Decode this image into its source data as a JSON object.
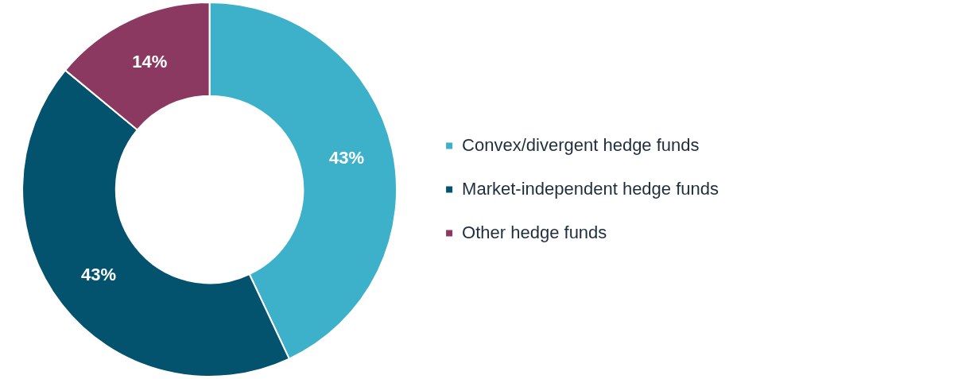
{
  "chart_data": {
    "type": "donut",
    "categories": [
      "Convex/divergent hedge funds",
      "Market-independent hedge funds",
      "Other hedge funds"
    ],
    "values": [
      43,
      43,
      14
    ],
    "colors": [
      "#3cb1c9",
      "#03536e",
      "#8c3961"
    ],
    "value_labels": [
      "43%",
      "43%",
      "14%"
    ],
    "legend": "right"
  }
}
